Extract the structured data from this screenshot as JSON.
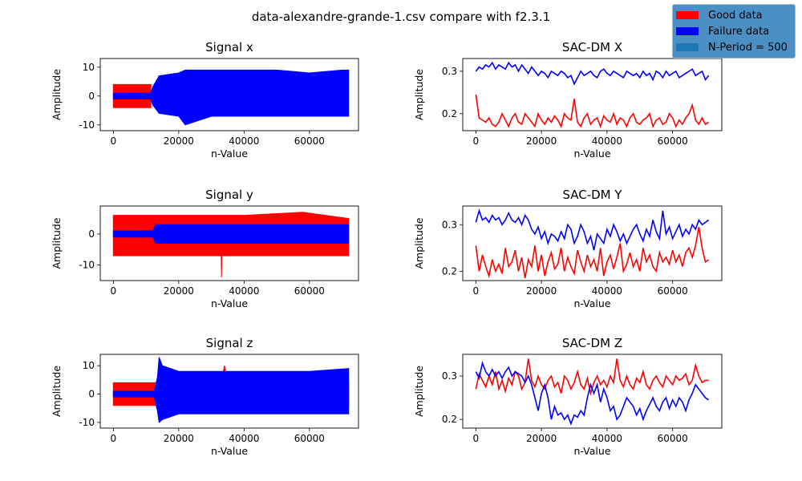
{
  "figure": {
    "suptitle": "data-alexandre-grande-1.csv compare with f2.3.1"
  },
  "legend": {
    "items": [
      {
        "label": "Good data",
        "color": "#ff0000"
      },
      {
        "label": "Failure data",
        "color": "#0000ff"
      },
      {
        "label": "N-Period = 500",
        "color": "#1f77b4"
      }
    ]
  },
  "colors": {
    "good": "#ff0000",
    "failure": "#0000ff"
  },
  "chart_data": [
    {
      "type": "area",
      "title": "Signal x",
      "xlabel": "n-Value",
      "ylabel": "Amplitude",
      "xlim": [
        -4000,
        75000
      ],
      "ylim": [
        -12,
        13
      ],
      "xticks": [
        0,
        20000,
        40000,
        60000
      ],
      "yticks": [
        -10,
        0,
        10
      ],
      "series": [
        {
          "name": "Good data",
          "color": "#ff0000",
          "x": [
            0,
            11500
          ],
          "upper": [
            4,
            4
          ],
          "lower": [
            -4,
            -4
          ]
        },
        {
          "name": "Failure data",
          "color": "#0000ff",
          "x": [
            0,
            11500,
            12000,
            14000,
            20000,
            22000,
            30000,
            40000,
            50000,
            60000,
            70000,
            72000
          ],
          "upper": [
            1,
            1,
            3,
            7,
            8,
            9,
            9,
            9,
            9,
            8,
            9,
            9
          ],
          "lower": [
            -1,
            -1,
            -3,
            -6,
            -7,
            -10,
            -7,
            -7,
            -7,
            -7,
            -7,
            -7
          ]
        }
      ]
    },
    {
      "type": "line",
      "title": "SAC-DM X",
      "xlabel": "n-Value",
      "ylabel": "Amplitude",
      "xlim": [
        -4000,
        75000
      ],
      "ylim": [
        0.16,
        0.33
      ],
      "xticks": [
        0,
        20000,
        40000,
        60000
      ],
      "yticks": [
        0.2,
        0.3
      ],
      "series": [
        {
          "name": "Good data",
          "color": "#ff0000",
          "x_start": 0,
          "x_step": 500,
          "values": [
            0.245,
            0.19,
            0.185,
            0.18,
            0.19,
            0.175,
            0.17,
            0.18,
            0.2,
            0.185,
            0.17,
            0.19,
            0.2,
            0.18,
            0.175,
            0.2,
            0.19,
            0.18,
            0.17,
            0.2,
            0.185,
            0.175,
            0.19,
            0.18,
            0.195,
            0.185,
            0.17,
            0.2,
            0.19,
            0.185,
            0.235,
            0.18,
            0.17,
            0.19,
            0.2,
            0.175,
            0.185,
            0.19,
            0.17,
            0.195,
            0.185,
            0.18,
            0.2,
            0.175,
            0.19,
            0.185,
            0.17,
            0.19,
            0.2,
            0.18,
            0.175,
            0.185,
            0.19,
            0.2,
            0.17,
            0.185,
            0.19,
            0.175,
            0.18,
            0.2,
            0.19,
            0.17,
            0.185,
            0.175,
            0.19,
            0.2,
            0.22,
            0.185,
            0.175,
            0.19,
            0.175,
            0.18
          ]
        },
        {
          "name": "Failure data",
          "color": "#0000ff",
          "x_start": 0,
          "x_step": 500,
          "values": [
            0.3,
            0.31,
            0.305,
            0.315,
            0.31,
            0.32,
            0.305,
            0.315,
            0.31,
            0.305,
            0.32,
            0.31,
            0.315,
            0.3,
            0.315,
            0.305,
            0.295,
            0.31,
            0.3,
            0.29,
            0.3,
            0.295,
            0.285,
            0.3,
            0.295,
            0.29,
            0.3,
            0.295,
            0.285,
            0.29,
            0.27,
            0.285,
            0.3,
            0.29,
            0.295,
            0.3,
            0.29,
            0.285,
            0.3,
            0.305,
            0.295,
            0.29,
            0.3,
            0.295,
            0.29,
            0.285,
            0.3,
            0.295,
            0.29,
            0.295,
            0.285,
            0.3,
            0.29,
            0.295,
            0.28,
            0.3,
            0.295,
            0.285,
            0.3,
            0.29,
            0.295,
            0.3,
            0.285,
            0.29,
            0.295,
            0.3,
            0.305,
            0.29,
            0.295,
            0.3,
            0.28,
            0.29
          ]
        }
      ]
    },
    {
      "type": "area",
      "title": "Signal y",
      "xlabel": "n-Value",
      "ylabel": "Amplitude",
      "xlim": [
        -4000,
        75000
      ],
      "ylim": [
        -15,
        9
      ],
      "xticks": [
        0,
        20000,
        40000,
        60000
      ],
      "yticks": [
        -10,
        0
      ],
      "series": [
        {
          "name": "Good data",
          "color": "#ff0000",
          "x": [
            0,
            12000,
            14000,
            30000,
            33000,
            33100,
            33200,
            40000,
            58000,
            72000
          ],
          "upper": [
            6,
            6,
            6,
            6,
            6,
            6,
            6,
            6,
            7,
            5
          ],
          "lower": [
            -7,
            -7,
            -7,
            -7,
            -7,
            -14,
            -7,
            -7,
            -7,
            -7
          ]
        },
        {
          "name": "Failure data",
          "color": "#0000ff",
          "x": [
            0,
            12000,
            13000,
            72000
          ],
          "upper": [
            1,
            1,
            3,
            3
          ],
          "lower": [
            -1,
            -1,
            -3,
            -3
          ]
        }
      ]
    },
    {
      "type": "line",
      "title": "SAC-DM Y",
      "xlabel": "n-Value",
      "ylabel": "Amplitude",
      "xlim": [
        -4000,
        75000
      ],
      "ylim": [
        0.18,
        0.34
      ],
      "xticks": [
        0,
        20000,
        40000,
        60000
      ],
      "yticks": [
        0.2,
        0.3
      ],
      "series": [
        {
          "name": "Good data",
          "color": "#ff0000",
          "x_start": 0,
          "x_step": 500,
          "values": [
            0.255,
            0.2,
            0.235,
            0.21,
            0.19,
            0.225,
            0.2,
            0.215,
            0.195,
            0.25,
            0.21,
            0.22,
            0.245,
            0.2,
            0.23,
            0.185,
            0.225,
            0.21,
            0.255,
            0.2,
            0.235,
            0.19,
            0.22,
            0.24,
            0.205,
            0.215,
            0.25,
            0.2,
            0.23,
            0.21,
            0.195,
            0.245,
            0.22,
            0.2,
            0.235,
            0.21,
            0.225,
            0.2,
            0.25,
            0.19,
            0.22,
            0.235,
            0.205,
            0.23,
            0.26,
            0.2,
            0.215,
            0.24,
            0.21,
            0.225,
            0.2,
            0.25,
            0.22,
            0.235,
            0.21,
            0.2,
            0.24,
            0.22,
            0.23,
            0.215,
            0.245,
            0.22,
            0.235,
            0.21,
            0.24,
            0.25,
            0.23,
            0.255,
            0.295,
            0.25,
            0.22,
            0.225
          ]
        },
        {
          "name": "Failure data",
          "color": "#0000ff",
          "x_start": 0,
          "x_step": 500,
          "values": [
            0.305,
            0.33,
            0.31,
            0.315,
            0.305,
            0.32,
            0.31,
            0.315,
            0.3,
            0.31,
            0.325,
            0.31,
            0.305,
            0.315,
            0.3,
            0.32,
            0.31,
            0.29,
            0.28,
            0.295,
            0.27,
            0.285,
            0.26,
            0.28,
            0.275,
            0.265,
            0.285,
            0.27,
            0.3,
            0.29,
            0.26,
            0.275,
            0.3,
            0.285,
            0.26,
            0.275,
            0.245,
            0.28,
            0.27,
            0.26,
            0.29,
            0.275,
            0.3,
            0.285,
            0.265,
            0.28,
            0.26,
            0.275,
            0.29,
            0.3,
            0.28,
            0.265,
            0.29,
            0.275,
            0.31,
            0.285,
            0.27,
            0.33,
            0.28,
            0.295,
            0.27,
            0.285,
            0.3,
            0.275,
            0.29,
            0.28,
            0.3,
            0.29,
            0.31,
            0.3,
            0.305,
            0.31
          ]
        }
      ]
    },
    {
      "type": "area",
      "title": "Signal z",
      "xlabel": "n-Value",
      "ylabel": "Amplitude",
      "xlim": [
        -4000,
        75000
      ],
      "ylim": [
        -12,
        14
      ],
      "xticks": [
        0,
        20000,
        40000,
        60000
      ],
      "yticks": [
        -10,
        0,
        10
      ],
      "series": [
        {
          "name": "Good data",
          "color": "#ff0000",
          "x": [
            0,
            13000,
            33000,
            34000,
            35000,
            72000
          ],
          "upper": [
            4,
            4,
            4,
            10,
            4,
            4
          ],
          "lower": [
            -4,
            -4,
            -4,
            -4,
            -4,
            -4
          ]
        },
        {
          "name": "Failure data",
          "color": "#0000ff",
          "x": [
            0,
            12500,
            13500,
            14000,
            15000,
            20000,
            30000,
            40000,
            50000,
            60000,
            72000
          ],
          "upper": [
            1,
            1,
            6,
            13,
            10,
            8,
            8,
            8,
            8,
            8,
            9
          ],
          "lower": [
            -1,
            -1,
            -6,
            -10,
            -9,
            -7,
            -7,
            -7,
            -7,
            -7,
            -7
          ]
        }
      ]
    },
    {
      "type": "line",
      "title": "SAC-DM Z",
      "xlabel": "n-Value",
      "ylabel": "Amplitude",
      "xlim": [
        -4000,
        75000
      ],
      "ylim": [
        0.18,
        0.35
      ],
      "xticks": [
        0,
        20000,
        40000,
        60000
      ],
      "yticks": [
        0.2,
        0.3
      ],
      "series": [
        {
          "name": "Good data",
          "color": "#ff0000",
          "x_start": 0,
          "x_step": 500,
          "values": [
            0.27,
            0.305,
            0.29,
            0.275,
            0.3,
            0.28,
            0.31,
            0.27,
            0.29,
            0.265,
            0.295,
            0.28,
            0.31,
            0.3,
            0.27,
            0.285,
            0.34,
            0.29,
            0.275,
            0.3,
            0.28,
            0.27,
            0.29,
            0.3,
            0.275,
            0.285,
            0.26,
            0.3,
            0.29,
            0.27,
            0.285,
            0.31,
            0.28,
            0.27,
            0.295,
            0.26,
            0.285,
            0.3,
            0.28,
            0.29,
            0.275,
            0.3,
            0.285,
            0.34,
            0.29,
            0.275,
            0.3,
            0.28,
            0.27,
            0.295,
            0.285,
            0.31,
            0.28,
            0.27,
            0.29,
            0.3,
            0.285,
            0.275,
            0.3,
            0.29,
            0.28,
            0.3,
            0.29,
            0.295,
            0.305,
            0.28,
            0.29,
            0.325,
            0.3,
            0.285,
            0.29,
            0.29
          ]
        },
        {
          "name": "Failure data",
          "color": "#0000ff",
          "x_start": 0,
          "x_step": 500,
          "values": [
            0.31,
            0.295,
            0.33,
            0.31,
            0.3,
            0.315,
            0.3,
            0.31,
            0.295,
            0.31,
            0.32,
            0.3,
            0.31,
            0.305,
            0.3,
            0.285,
            0.3,
            0.28,
            0.25,
            0.22,
            0.26,
            0.28,
            0.25,
            0.2,
            0.23,
            0.21,
            0.215,
            0.2,
            0.21,
            0.19,
            0.21,
            0.205,
            0.22,
            0.21,
            0.25,
            0.28,
            0.26,
            0.28,
            0.24,
            0.27,
            0.25,
            0.22,
            0.23,
            0.2,
            0.21,
            0.23,
            0.25,
            0.24,
            0.23,
            0.21,
            0.225,
            0.2,
            0.22,
            0.235,
            0.25,
            0.23,
            0.22,
            0.24,
            0.25,
            0.225,
            0.245,
            0.23,
            0.25,
            0.24,
            0.22,
            0.245,
            0.26,
            0.28,
            0.27,
            0.26,
            0.25,
            0.245
          ]
        }
      ]
    }
  ]
}
